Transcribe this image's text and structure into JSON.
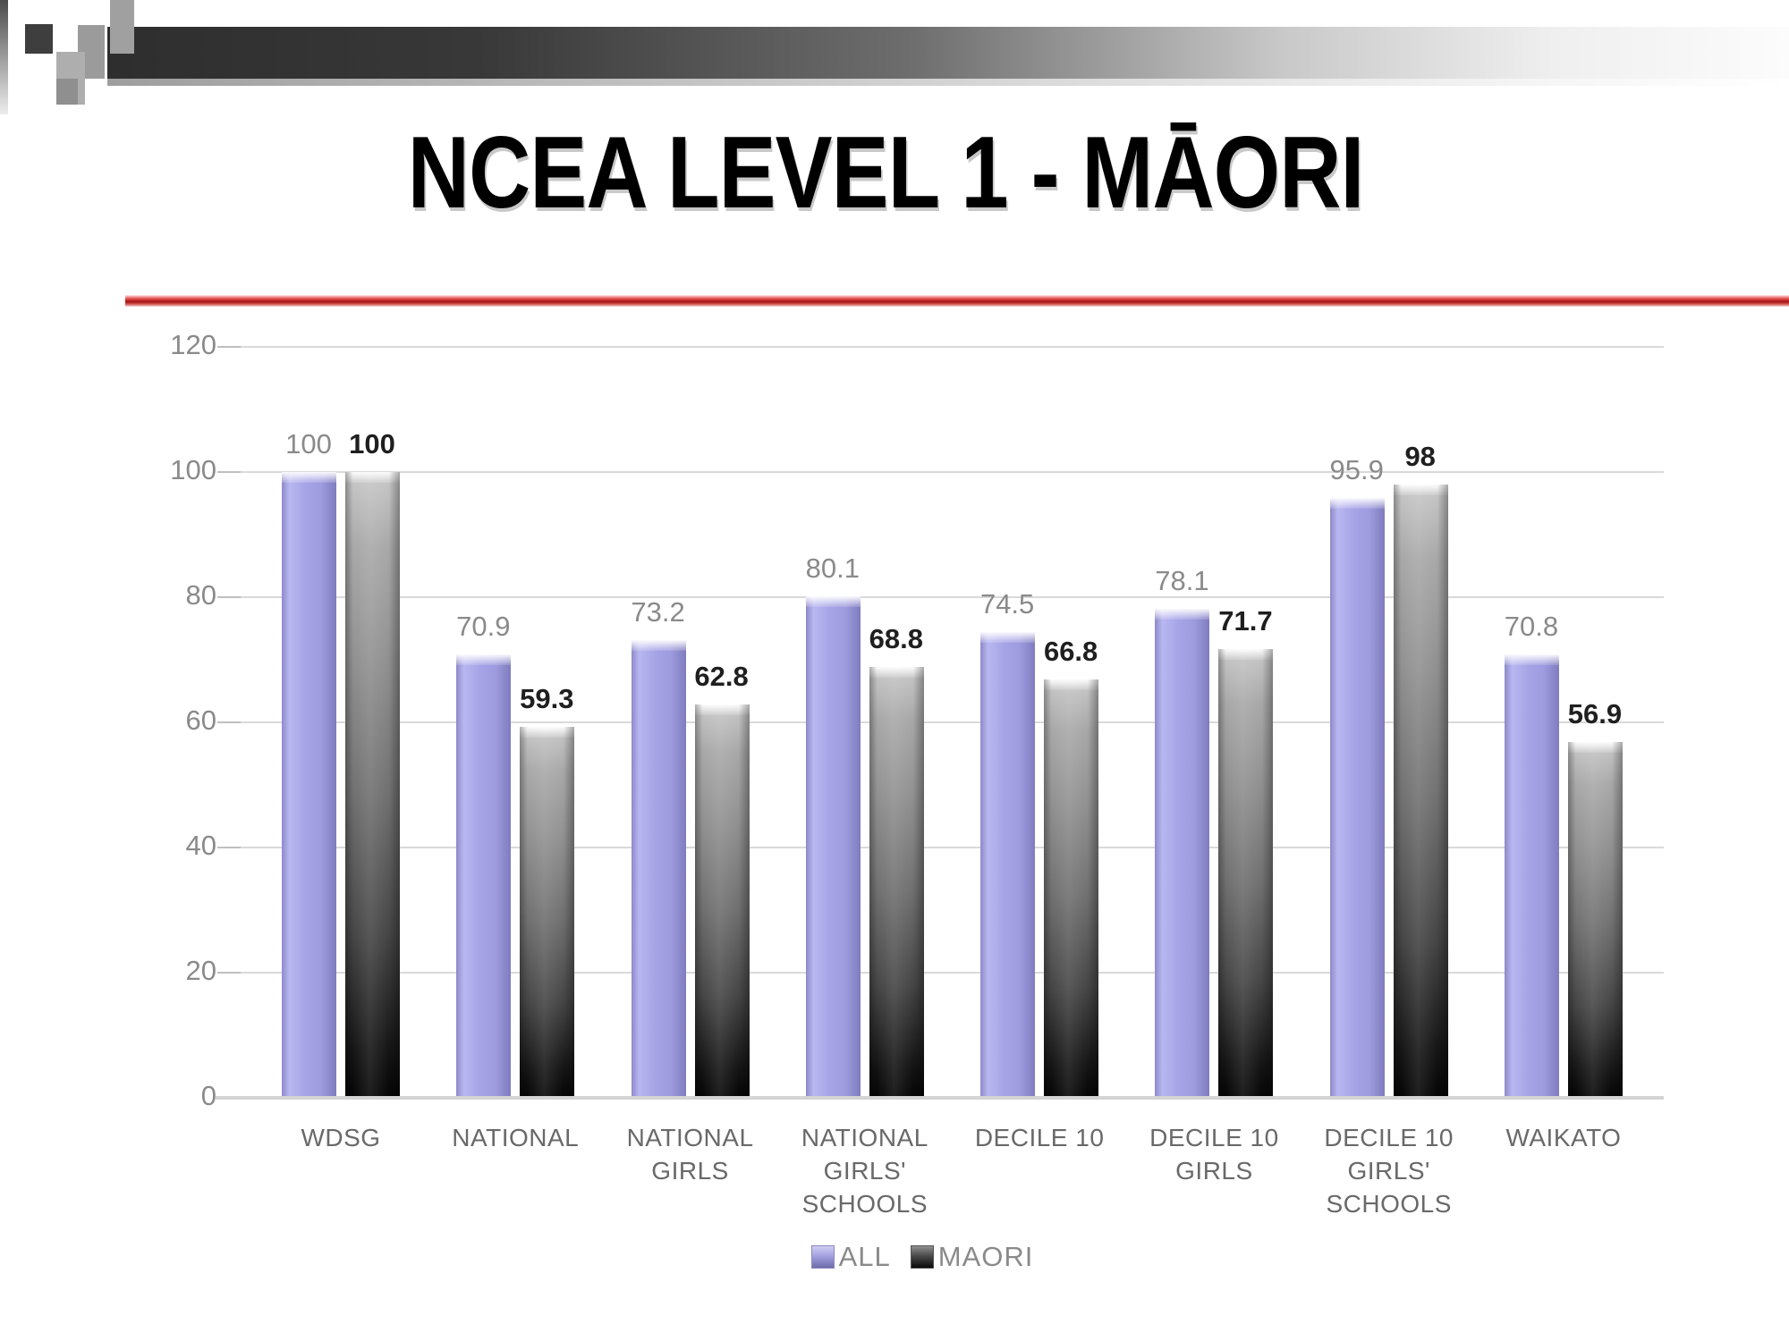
{
  "slide": {
    "title": "NCEA LEVEL 1 - MĀORI"
  },
  "colors": {
    "bar_all": "#a3a0e4",
    "bar_maori_top": "#b5b5b5",
    "bar_maori_bottom": "#0a0a0a",
    "divider_red": "#c42020",
    "gridline": "#d9d9d9",
    "axis_text": "#8a8a8a",
    "category_text": "#696969",
    "data_label_all": "#8a8a8a",
    "data_label_maori": "#1f1f1f"
  },
  "chart_data": {
    "type": "bar",
    "title": "NCEA LEVEL 1 - MĀORI",
    "xlabel": "",
    "ylabel": "",
    "grid": true,
    "legend_position": "bottom",
    "y_axis": {
      "min": 0,
      "max": 120,
      "ticks": [
        0,
        20,
        40,
        60,
        80,
        100,
        120
      ]
    },
    "categories": [
      "WDSG",
      "NATIONAL",
      "NATIONAL GIRLS",
      "NATIONAL GIRLS' SCHOOLS",
      "DECILE 10",
      "DECILE 10 GIRLS",
      "DECILE 10 GIRLS' SCHOOLS",
      "WAIKATO"
    ],
    "categories_lines": [
      [
        "WDSG"
      ],
      [
        "NATIONAL"
      ],
      [
        "NATIONAL",
        "GIRLS"
      ],
      [
        "NATIONAL",
        "GIRLS'",
        "SCHOOLS"
      ],
      [
        "DECILE 10"
      ],
      [
        "DECILE 10",
        "GIRLS"
      ],
      [
        "DECILE 10",
        "GIRLS'",
        "SCHOOLS"
      ],
      [
        "WAIKATO"
      ]
    ],
    "series": [
      {
        "name": "ALL",
        "values": [
          100,
          70.9,
          73.2,
          80.1,
          74.5,
          78.1,
          95.9,
          70.8
        ]
      },
      {
        "name": "MAORI",
        "values": [
          100,
          59.3,
          62.8,
          68.8,
          66.8,
          71.7,
          98,
          56.9
        ]
      }
    ]
  }
}
